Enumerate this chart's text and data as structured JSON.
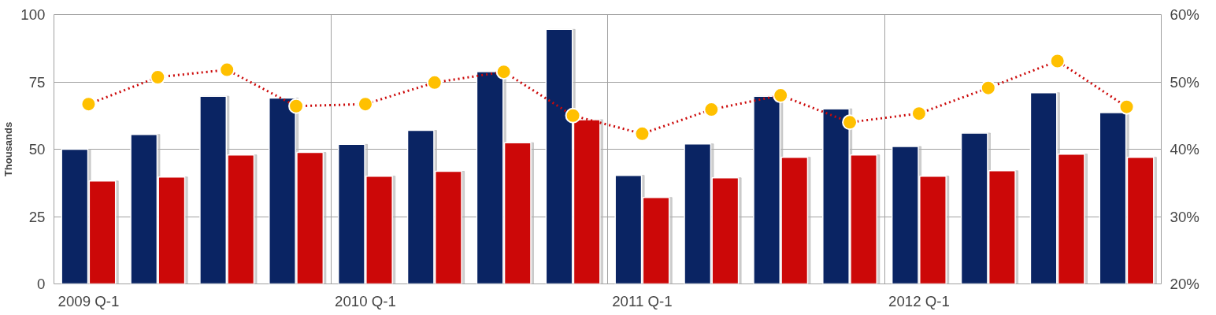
{
  "chart_data": {
    "type": "bar",
    "ylabel": "Thousands",
    "categories": [
      "2009 Q-1",
      null,
      null,
      null,
      "2010 Q-1",
      null,
      null,
      null,
      "2011 Q-1",
      null,
      null,
      null,
      "2012 Q-1",
      null,
      null,
      null
    ],
    "series": [
      {
        "color": "#0a2463",
        "values": [
          50,
          55.5,
          69.7,
          69,
          51.8,
          57,
          78.8,
          94.5,
          40.3,
          52,
          69.7,
          65,
          51,
          56,
          71,
          63.6
        ]
      },
      {
        "color": "#cc0808",
        "values": [
          38.2,
          39.7,
          47.9,
          48.8,
          40,
          41.8,
          52.4,
          61,
          32.1,
          39.4,
          47,
          47.9,
          40,
          42,
          48.2,
          47
        ]
      },
      {
        "type": "line",
        "axis": "y2",
        "color": "#ffc000",
        "line_style": "dotted",
        "marker": "circle",
        "values": [
          46.7,
          50.7,
          51.8,
          46.4,
          46.7,
          49.9,
          51.5,
          45.0,
          42.3,
          45.9,
          48.0,
          44.0,
          45.3,
          49.1,
          53.1,
          46.3
        ]
      }
    ],
    "ylim": [
      0,
      100
    ],
    "yticks": [
      0,
      25,
      50,
      75,
      100
    ],
    "y2lim": [
      20,
      60
    ],
    "y2ticks": [
      {
        "value": 20,
        "label": "20%"
      },
      {
        "value": 30,
        "label": "30%"
      },
      {
        "value": 40,
        "label": "40%"
      },
      {
        "value": 50,
        "label": "50%"
      },
      {
        "value": 60,
        "label": "60%"
      }
    ],
    "grid": true
  }
}
